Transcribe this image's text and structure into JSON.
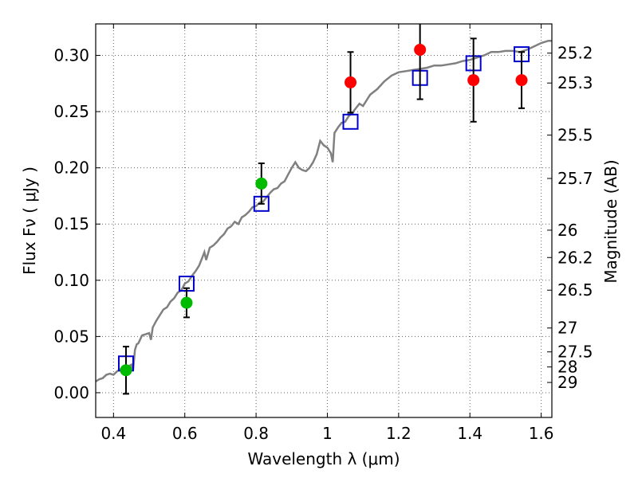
{
  "chart_data": {
    "type": "scatter",
    "title": "",
    "xlabel": "Wavelength  λ (μm)",
    "ylabel": "Flux  Fν  ( μJy )",
    "ylabel_right": "Magnitude (AB)",
    "xlim": [
      0.35,
      1.63
    ],
    "ylim": [
      -0.022,
      0.328
    ],
    "grid": true,
    "x_ticks": [
      {
        "value": 0.4,
        "label": "0.4"
      },
      {
        "value": 0.6,
        "label": "0.6"
      },
      {
        "value": 0.8,
        "label": "0.8"
      },
      {
        "value": 1.0,
        "label": "1"
      },
      {
        "value": 1.2,
        "label": "1.2"
      },
      {
        "value": 1.4,
        "label": "1.4"
      },
      {
        "value": 1.6,
        "label": "1.6"
      }
    ],
    "y_ticks": [
      {
        "value": 0.0,
        "label": "0.00"
      },
      {
        "value": 0.05,
        "label": "0.05"
      },
      {
        "value": 0.1,
        "label": "0.10"
      },
      {
        "value": 0.15,
        "label": "0.15"
      },
      {
        "value": 0.2,
        "label": "0.20"
      },
      {
        "value": 0.25,
        "label": "0.25"
      },
      {
        "value": 0.3,
        "label": "0.30"
      }
    ],
    "right_ticks": [
      {
        "label": "25.2",
        "value": 25.2
      },
      {
        "label": "25.3",
        "value": 25.3
      },
      {
        "label": "25.5",
        "value": 25.5
      },
      {
        "label": "25.7",
        "value": 25.7
      },
      {
        "label": "26",
        "value": 26
      },
      {
        "label": "26.2",
        "value": 26.2
      },
      {
        "label": "26.5",
        "value": 26.5
      },
      {
        "label": "27",
        "value": 27
      },
      {
        "label": "27.5",
        "value": 27.5
      },
      {
        "label": "28",
        "value": 28
      },
      {
        "label": "29",
        "value": 29
      }
    ],
    "series": [
      {
        "kind": "line",
        "color": "#808080",
        "points": [
          [
            0.35,
            0.01
          ],
          [
            0.36,
            0.012
          ],
          [
            0.37,
            0.013
          ],
          [
            0.38,
            0.016
          ],
          [
            0.39,
            0.017
          ],
          [
            0.4,
            0.016
          ],
          [
            0.41,
            0.019
          ],
          [
            0.42,
            0.021
          ],
          [
            0.43,
            0.022
          ],
          [
            0.44,
            0.023
          ],
          [
            0.45,
            0.025
          ],
          [
            0.455,
            0.02
          ],
          [
            0.46,
            0.038
          ],
          [
            0.465,
            0.043
          ],
          [
            0.47,
            0.044
          ],
          [
            0.48,
            0.051
          ],
          [
            0.49,
            0.052
          ],
          [
            0.5,
            0.053
          ],
          [
            0.505,
            0.047
          ],
          [
            0.51,
            0.058
          ],
          [
            0.52,
            0.064
          ],
          [
            0.53,
            0.069
          ],
          [
            0.54,
            0.074
          ],
          [
            0.55,
            0.076
          ],
          [
            0.56,
            0.081
          ],
          [
            0.57,
            0.084
          ],
          [
            0.58,
            0.089
          ],
          [
            0.59,
            0.091
          ],
          [
            0.6,
            0.097
          ],
          [
            0.61,
            0.099
          ],
          [
            0.62,
            0.104
          ],
          [
            0.63,
            0.108
          ],
          [
            0.64,
            0.113
          ],
          [
            0.65,
            0.121
          ],
          [
            0.655,
            0.125
          ],
          [
            0.66,
            0.118
          ],
          [
            0.67,
            0.129
          ],
          [
            0.68,
            0.131
          ],
          [
            0.69,
            0.134
          ],
          [
            0.7,
            0.138
          ],
          [
            0.71,
            0.141
          ],
          [
            0.72,
            0.146
          ],
          [
            0.73,
            0.148
          ],
          [
            0.74,
            0.152
          ],
          [
            0.75,
            0.15
          ],
          [
            0.76,
            0.156
          ],
          [
            0.77,
            0.158
          ],
          [
            0.78,
            0.161
          ],
          [
            0.79,
            0.165
          ],
          [
            0.8,
            0.166
          ],
          [
            0.81,
            0.169
          ],
          [
            0.82,
            0.17
          ],
          [
            0.83,
            0.174
          ],
          [
            0.84,
            0.178
          ],
          [
            0.85,
            0.181
          ],
          [
            0.86,
            0.182
          ],
          [
            0.87,
            0.186
          ],
          [
            0.88,
            0.188
          ],
          [
            0.89,
            0.194
          ],
          [
            0.9,
            0.2
          ],
          [
            0.91,
            0.205
          ],
          [
            0.92,
            0.2
          ],
          [
            0.93,
            0.198
          ],
          [
            0.94,
            0.197
          ],
          [
            0.95,
            0.2
          ],
          [
            0.96,
            0.205
          ],
          [
            0.97,
            0.212
          ],
          [
            0.98,
            0.224
          ],
          [
            0.99,
            0.22
          ],
          [
            1.0,
            0.218
          ],
          [
            1.01,
            0.213
          ],
          [
            1.015,
            0.205
          ],
          [
            1.02,
            0.231
          ],
          [
            1.03,
            0.236
          ],
          [
            1.04,
            0.24
          ],
          [
            1.05,
            0.241
          ],
          [
            1.06,
            0.246
          ],
          [
            1.07,
            0.249
          ],
          [
            1.08,
            0.253
          ],
          [
            1.09,
            0.257
          ],
          [
            1.1,
            0.255
          ],
          [
            1.11,
            0.26
          ],
          [
            1.12,
            0.265
          ],
          [
            1.14,
            0.27
          ],
          [
            1.16,
            0.277
          ],
          [
            1.18,
            0.282
          ],
          [
            1.2,
            0.285
          ],
          [
            1.22,
            0.286
          ],
          [
            1.24,
            0.287
          ],
          [
            1.26,
            0.288
          ],
          [
            1.28,
            0.289
          ],
          [
            1.3,
            0.291
          ],
          [
            1.32,
            0.291
          ],
          [
            1.34,
            0.292
          ],
          [
            1.36,
            0.293
          ],
          [
            1.38,
            0.295
          ],
          [
            1.4,
            0.296
          ],
          [
            1.42,
            0.298
          ],
          [
            1.44,
            0.3
          ],
          [
            1.46,
            0.303
          ],
          [
            1.48,
            0.303
          ],
          [
            1.5,
            0.304
          ],
          [
            1.52,
            0.304
          ],
          [
            1.54,
            0.303
          ],
          [
            1.56,
            0.305
          ],
          [
            1.58,
            0.308
          ],
          [
            1.6,
            0.311
          ],
          [
            1.62,
            0.313
          ],
          [
            1.63,
            0.313
          ]
        ]
      },
      {
        "kind": "squares",
        "color": "#0000cc",
        "points": [
          [
            0.435,
            0.026
          ],
          [
            0.605,
            0.097
          ],
          [
            0.815,
            0.168
          ],
          [
            1.065,
            0.241
          ],
          [
            1.26,
            0.28
          ],
          [
            1.41,
            0.293
          ],
          [
            1.545,
            0.301
          ]
        ]
      },
      {
        "kind": "points",
        "color": "#00bb00",
        "points": [
          {
            "x": 0.435,
            "y": 0.02,
            "yerr": 0.021
          },
          {
            "x": 0.605,
            "y": 0.08,
            "yerr": 0.013
          },
          {
            "x": 0.815,
            "y": 0.186,
            "yerr": 0.018
          }
        ]
      },
      {
        "kind": "points",
        "color": "#ff0000",
        "points": [
          {
            "x": 1.065,
            "y": 0.276,
            "yerr": 0.027
          },
          {
            "x": 1.26,
            "y": 0.305,
            "yerr": 0.044
          },
          {
            "x": 1.41,
            "y": 0.278,
            "yerr": 0.037
          },
          {
            "x": 1.545,
            "y": 0.278,
            "yerr": 0.025
          }
        ]
      }
    ]
  }
}
